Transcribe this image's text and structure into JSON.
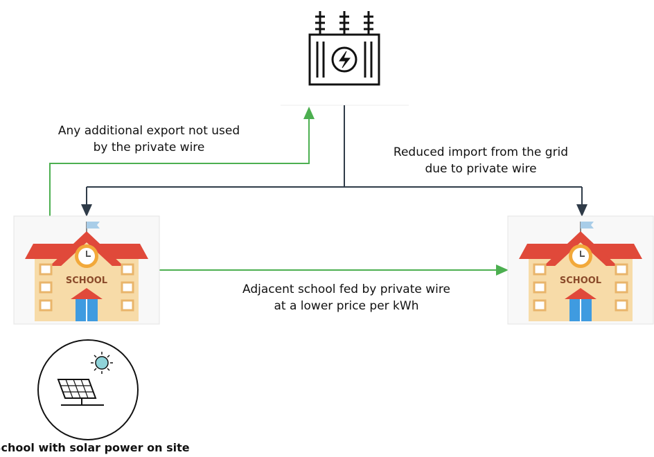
{
  "labels": {
    "export": [
      "Any additional export not used",
      "by the private wire"
    ],
    "import": [
      "Reduced import from the grid",
      "due to private wire"
    ],
    "adjacent": [
      "Adjacent school fed by private wire",
      "at a lower price per kWh"
    ],
    "solar_school": "School with solar power on site"
  },
  "icons": {
    "school_sign": "SCHOOL"
  }
}
